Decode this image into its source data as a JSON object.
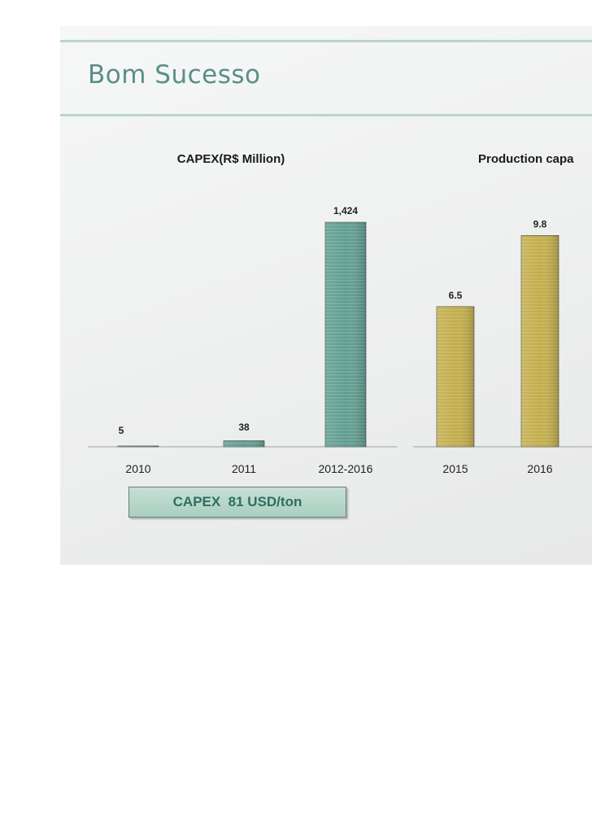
{
  "slide": {
    "title": "Bom Sucesso"
  },
  "capex_note": "CAPEX  81 USD/ton",
  "colors": {
    "title": "#5a8f87",
    "rule": "#b6d6cf",
    "capex_bar": "#5e9c8f",
    "production_bar": "#c2ac49"
  },
  "chart_data": [
    {
      "type": "bar",
      "title": "CAPEX(R$ Million)",
      "categories": [
        "2010",
        "2011",
        "2012-2016"
      ],
      "values": [
        5,
        38,
        1424
      ],
      "value_labels": [
        "5",
        "38",
        "1,424"
      ],
      "xlabel": "",
      "ylabel": "",
      "ylim": [
        0,
        1600
      ],
      "grid": false,
      "color": "#5e9c8f"
    },
    {
      "type": "bar",
      "title": "Production capa",
      "categories": [
        "2015",
        "2016"
      ],
      "values": [
        6.5,
        9.8
      ],
      "value_labels": [
        "6.5",
        "9.8"
      ],
      "xlabel": "",
      "ylabel": "",
      "ylim": [
        0,
        11.7
      ],
      "grid": false,
      "color": "#c2ac49"
    }
  ]
}
